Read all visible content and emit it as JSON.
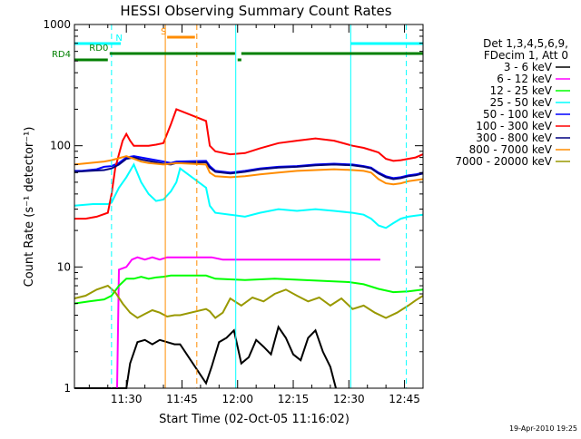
{
  "chart_data": {
    "type": "line",
    "title": "HESSI Observing Summary Count Rates",
    "xlabel": "Start Time (02-Oct-05 11:16:02)",
    "ylabel": "Count Rate (s⁻¹ detector⁻¹)",
    "y_scale": "log",
    "ylim": [
      1,
      1000
    ],
    "xlim_minutes": [
      0,
      94
    ],
    "y_ticks": [
      1,
      10,
      100,
      1000
    ],
    "y_tick_labels": [
      "1",
      "10",
      "100",
      "1000"
    ],
    "x_ticks": [
      14,
      29,
      44,
      59,
      74,
      89
    ],
    "x_tick_labels": [
      "11:30",
      "11:45",
      "12:00",
      "12:15",
      "12:30",
      "12:45"
    ],
    "legend_header": [
      "Det 1,3,4,5,6,9,",
      "FDecim 1, Att 0"
    ],
    "legend_placement": "right",
    "footer_date": "19-Apr-2010 19:25",
    "series": [
      {
        "name": "3 - 6 keV",
        "color": "#000000",
        "x": [
          0,
          6,
          9,
          12,
          14,
          15,
          17,
          19,
          21,
          23,
          25,
          27,
          28.5,
          35.5,
          37,
          39,
          41,
          43,
          45,
          47,
          49,
          51,
          53,
          55,
          57,
          59,
          61,
          63,
          65,
          67,
          69,
          70.5
        ],
        "y": [
          1,
          1,
          1,
          1,
          1,
          1.6,
          2.4,
          2.5,
          2.3,
          2.5,
          2.4,
          2.3,
          2.3,
          1.1,
          1.5,
          2.4,
          2.6,
          3,
          1.6,
          1.8,
          2.5,
          2.2,
          1.9,
          3.2,
          2.6,
          1.9,
          1.7,
          2.6,
          3,
          2,
          1.5,
          1
        ]
      },
      {
        "name": "6 - 12 keV",
        "color": "#ff00ff",
        "x": [
          11.5,
          12,
          14,
          15.5,
          17,
          19,
          21,
          23,
          25,
          27,
          28.5,
          35.5,
          37,
          40,
          45,
          50,
          55,
          60,
          65,
          70,
          75,
          80,
          82.5
        ],
        "y": [
          1,
          9.5,
          10,
          11.5,
          12,
          11.5,
          12,
          11.5,
          12,
          12,
          12,
          12,
          12,
          11.5,
          11.5,
          11.5,
          11.5,
          11.5,
          11.5,
          11.5,
          11.5,
          11.5,
          11.5
        ]
      },
      {
        "name": "12 - 25 keV",
        "color": "#00ff00",
        "x": [
          0,
          4,
          8,
          10,
          12,
          14,
          16,
          18,
          20,
          22,
          24,
          26,
          28.5,
          35.5,
          38,
          42,
          46,
          50,
          54,
          58,
          62,
          66,
          70,
          74,
          78,
          82,
          86,
          90,
          94
        ],
        "y": [
          5,
          5.2,
          5.4,
          5.8,
          7,
          8,
          8,
          8.3,
          8,
          8.2,
          8.3,
          8.5,
          8.5,
          8.5,
          8,
          7.9,
          7.8,
          7.9,
          8,
          7.9,
          7.8,
          7.7,
          7.6,
          7.5,
          7.2,
          6.6,
          6.2,
          6.3,
          6.5
        ]
      },
      {
        "name": "25 - 50 keV",
        "color": "#00ffff",
        "x": [
          0,
          5,
          9,
          10,
          12,
          14,
          16,
          18,
          20,
          22,
          24,
          26,
          27.5,
          28.5,
          35.5,
          36.5,
          38,
          42,
          46,
          50,
          55,
          60,
          65,
          70,
          75,
          78,
          80,
          82,
          84,
          86,
          88,
          90,
          92,
          94
        ],
        "y": [
          32,
          33,
          33,
          34,
          45,
          55,
          70,
          50,
          40,
          35,
          36,
          42,
          50,
          65,
          45,
          32,
          28,
          27,
          26,
          28,
          30,
          29,
          30,
          29,
          28,
          27,
          25,
          22,
          21,
          23,
          25,
          26,
          26.5,
          27
        ]
      },
      {
        "name": "50 - 100 keV",
        "color": "#0000ff",
        "x": [
          0,
          2,
          4,
          6,
          8,
          10,
          11,
          12,
          14,
          16,
          18,
          20,
          22,
          24,
          26,
          27.5,
          35.5,
          36.5,
          38,
          42,
          46,
          50,
          55,
          60,
          65,
          70,
          75,
          78,
          80,
          82,
          84,
          86,
          88,
          90,
          92,
          94
        ],
        "y": [
          62,
          62,
          63,
          64,
          67,
          68,
          70,
          72,
          80,
          82,
          80,
          78,
          76,
          74,
          72,
          74,
          75,
          68,
          62,
          60,
          62,
          65,
          67,
          68,
          70,
          71,
          70,
          68,
          66,
          60,
          56,
          54,
          55,
          57,
          58,
          60
        ]
      },
      {
        "name": "100 - 300 keV",
        "color": "#ff0000",
        "x": [
          0,
          3,
          6,
          9,
          10,
          11,
          12,
          13,
          14,
          15,
          16,
          18,
          20,
          22,
          24,
          26,
          27.5,
          35.5,
          36.5,
          38,
          42,
          46,
          50,
          55,
          60,
          65,
          70,
          75,
          78,
          80,
          82,
          84,
          86,
          88,
          90,
          92,
          94
        ],
        "y": [
          25,
          25,
          26,
          28,
          40,
          65,
          85,
          110,
          125,
          110,
          100,
          100,
          100,
          102,
          105,
          150,
          200,
          160,
          100,
          90,
          85,
          87,
          95,
          105,
          110,
          115,
          110,
          100,
          96,
          92,
          88,
          78,
          75,
          76,
          78,
          80,
          85
        ]
      },
      {
        "name": "300 - 800 keV",
        "color": "#000080",
        "x": [
          0,
          4,
          8,
          10,
          12,
          14,
          16,
          18,
          20,
          22,
          24,
          26,
          27.5,
          35.5,
          36.5,
          38,
          42,
          46,
          50,
          55,
          60,
          65,
          70,
          75,
          78,
          80,
          82,
          84,
          86,
          88,
          90,
          92,
          94
        ],
        "y": [
          61,
          62,
          63,
          65,
          70,
          78,
          80,
          77,
          75,
          73,
          71,
          70,
          72,
          73,
          66,
          61,
          59,
          61,
          64,
          66,
          67,
          69,
          70,
          69,
          67,
          65,
          59,
          55,
          53,
          54,
          56,
          57,
          59
        ]
      },
      {
        "name": "800 - 7000 keV",
        "color": "#ff8c00",
        "x": [
          0,
          4,
          8,
          10,
          12,
          14,
          16,
          18,
          20,
          22,
          24,
          26,
          27.5,
          35.5,
          36.5,
          38,
          42,
          46,
          50,
          55,
          60,
          65,
          70,
          75,
          78,
          80,
          82,
          84,
          86,
          88,
          90,
          92,
          94
        ],
        "y": [
          70,
          72,
          74,
          76,
          79,
          82,
          78,
          74,
          72,
          71,
          70,
          71,
          72,
          70,
          60,
          56,
          55,
          56,
          58,
          60,
          62,
          63,
          64,
          63,
          62,
          60,
          53,
          49,
          48,
          49,
          51,
          52,
          53
        ]
      },
      {
        "name": "7000 - 20000 keV",
        "color": "#999900",
        "x": [
          0,
          3,
          6,
          9,
          11,
          13,
          15,
          17,
          19,
          21,
          23,
          25,
          27,
          28.5,
          35.5,
          36.5,
          38,
          40,
          42,
          45,
          48,
          51,
          54,
          57,
          60,
          63,
          66,
          69,
          72,
          75,
          78,
          81,
          84,
          87,
          90,
          92,
          94
        ],
        "y": [
          5.5,
          5.8,
          6.5,
          7,
          6.2,
          5,
          4.2,
          3.8,
          4.1,
          4.4,
          4.2,
          3.9,
          4,
          4,
          4.5,
          4.3,
          3.8,
          4.2,
          5.5,
          4.8,
          5.6,
          5.2,
          6,
          6.5,
          5.8,
          5.2,
          5.6,
          4.8,
          5.5,
          4.5,
          4.8,
          4.2,
          3.8,
          4.2,
          4.8,
          5.3,
          5.8
        ]
      }
    ],
    "vertical_markers": [
      {
        "x": 10,
        "color": "#00ffff",
        "style": "dashed"
      },
      {
        "x": 24.5,
        "color": "#ff8c00",
        "style": "solid"
      },
      {
        "x": 33,
        "color": "#ff8c00",
        "style": "dashed"
      },
      {
        "x": 43.5,
        "color": "#00ffff",
        "style": "solid"
      },
      {
        "x": 74.5,
        "color": "#00ffff",
        "style": "solid"
      },
      {
        "x": 89.5,
        "color": "#00ffff",
        "style": "dashed"
      }
    ],
    "flag_bars": [
      {
        "label": "N",
        "color": "#00ffff",
        "segments": [
          [
            0,
            12.5
          ],
          [
            74.5,
            94
          ]
        ]
      },
      {
        "label": "S",
        "color": "#ff8c00",
        "segments": [
          [
            25,
            32.5
          ]
        ]
      },
      {
        "label": "RD0",
        "color": "#008000",
        "segments": [
          [
            9.5,
            43.3
          ],
          [
            45,
            94
          ]
        ]
      },
      {
        "label": "RD4",
        "color": "#008000",
        "segments": [
          [
            0,
            9
          ],
          [
            44,
            45
          ]
        ]
      }
    ]
  }
}
